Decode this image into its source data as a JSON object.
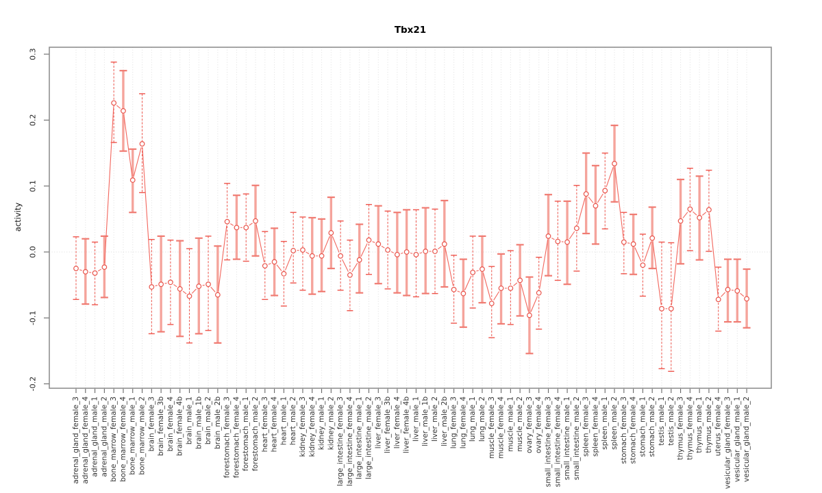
{
  "header": {
    "title": "Tbx21"
  },
  "chart_data": {
    "type": "line",
    "subtype": "points-with-error-bars",
    "title": "Tbx21",
    "xlabel": "",
    "ylabel": "activity",
    "ylim": [
      -0.21,
      0.31
    ],
    "yticks": [
      0.3,
      0.2,
      0.1,
      0.0,
      -0.1,
      -0.2
    ],
    "grid": "vertical dotted line per category; dotted horizontal line at y=0; no legend",
    "legend": "none",
    "marker": "open-circle",
    "line_style": "solid segments with gaps at markers",
    "colors": {
      "line": "#f2655c",
      "point": "#e9534a",
      "bar_thick": "#f5a49c",
      "bar_thick_tick": "#f07b72",
      "bar_thin": "#ee544b",
      "grid": "#dedede",
      "zero_line": "#d9d9d9",
      "box": "#8f8f8f",
      "tick": "#666666",
      "text": "#333333"
    },
    "categories": [
      "adrenal_gland_female_3",
      "adrenal_gland_female_4",
      "adrenal_gland_male_1",
      "adrenal_gland_male_2",
      "bone_marrow_female_3",
      "bone_marrow_female_4",
      "bone_marrow_male_1",
      "bone_marrow_male_2",
      "brain_female_3",
      "brain_female_3b",
      "brain_female_4",
      "brain_female_4b",
      "brain_male_1",
      "brain_male_1b",
      "brain_male_2",
      "brain_male_2b",
      "forestomach_female_3",
      "forestomach_female_4",
      "forestomach_male_1",
      "forestomach_male_2",
      "heart_female_3",
      "heart_female_4",
      "heart_male_1",
      "heart_male_2",
      "kidney_female_3",
      "kidney_female_4",
      "kidney_male_1",
      "kidney_male_2",
      "large_intestine_female_3",
      "large_intestine_female_4",
      "large_intestine_male_1",
      "large_intestine_male_2",
      "liver_female_3",
      "liver_female_3b",
      "liver_female_4",
      "liver_female_4b",
      "liver_male_1",
      "liver_male_1b",
      "liver_male_2",
      "liver_male_2b",
      "lung_female_3",
      "lung_female_4",
      "lung_male_1",
      "lung_male_2",
      "muscle_female_3",
      "muscle_female_4",
      "muscle_male_1",
      "muscle_male_2",
      "ovary_female_3",
      "ovary_female_4",
      "small_intestine_female_3",
      "small_intestine_female_4",
      "small_intestine_male_1",
      "small_intestine_male_2",
      "spleen_female_3",
      "spleen_female_4",
      "spleen_male_1",
      "spleen_male_2",
      "stomach_female_3",
      "stomach_female_4",
      "stomach_male_1",
      "stomach_male_2",
      "testis_male_1",
      "testis_male_2",
      "thymus_female_3",
      "thymus_female_4",
      "thymus_male_1",
      "thymus_male_2",
      "uterus_female_4",
      "vesicular_gland_female_3",
      "vesicular_gland_male_1",
      "vesicular_gland_male_2"
    ],
    "series": [
      {
        "name": "activity",
        "values": [
          -0.025,
          -0.03,
          -0.032,
          -0.023,
          0.226,
          0.214,
          0.109,
          0.164,
          -0.053,
          -0.049,
          -0.046,
          -0.056,
          -0.067,
          -0.052,
          -0.049,
          -0.065,
          0.046,
          0.037,
          0.037,
          0.047,
          -0.021,
          -0.015,
          -0.033,
          0.002,
          0.003,
          -0.006,
          -0.006,
          0.029,
          -0.006,
          -0.035,
          -0.012,
          0.018,
          0.012,
          0.003,
          -0.004,
          0.0,
          -0.004,
          0.001,
          0.001,
          0.012,
          -0.057,
          -0.063,
          -0.031,
          -0.026,
          -0.078,
          -0.055,
          -0.055,
          -0.043,
          -0.096,
          -0.062,
          0.024,
          0.016,
          0.015,
          0.036,
          0.088,
          0.07,
          0.093,
          0.134,
          0.015,
          0.012,
          -0.02,
          0.021,
          -0.086,
          -0.086,
          0.047,
          0.065,
          0.052,
          0.064,
          -0.072,
          -0.057,
          -0.059,
          -0.071
        ],
        "err_lo": [
          -0.072,
          -0.079,
          -0.08,
          -0.069,
          0.166,
          0.153,
          0.06,
          0.09,
          -0.124,
          -0.121,
          -0.11,
          -0.128,
          -0.138,
          -0.124,
          -0.119,
          -0.138,
          -0.012,
          -0.011,
          -0.014,
          -0.006,
          -0.072,
          -0.066,
          -0.082,
          -0.047,
          -0.058,
          -0.064,
          -0.06,
          -0.025,
          -0.058,
          -0.089,
          -0.062,
          -0.034,
          -0.048,
          -0.056,
          -0.062,
          -0.066,
          -0.068,
          -0.063,
          -0.063,
          -0.053,
          -0.108,
          -0.114,
          -0.085,
          -0.077,
          -0.13,
          -0.109,
          -0.11,
          -0.097,
          -0.154,
          -0.117,
          -0.036,
          -0.043,
          -0.049,
          -0.029,
          0.028,
          0.012,
          0.035,
          0.076,
          -0.033,
          -0.034,
          -0.067,
          -0.025,
          -0.177,
          -0.181,
          -0.018,
          0.002,
          -0.012,
          0.001,
          -0.12,
          -0.106,
          -0.106,
          -0.115
        ],
        "err_hi": [
          0.023,
          0.02,
          0.015,
          0.024,
          0.288,
          0.275,
          0.156,
          0.24,
          0.019,
          0.024,
          0.018,
          0.017,
          0.005,
          0.021,
          0.024,
          0.009,
          0.104,
          0.086,
          0.088,
          0.101,
          0.031,
          0.036,
          0.016,
          0.06,
          0.053,
          0.052,
          0.05,
          0.083,
          0.047,
          0.018,
          0.042,
          0.072,
          0.07,
          0.062,
          0.06,
          0.064,
          0.064,
          0.067,
          0.065,
          0.078,
          -0.005,
          -0.011,
          0.024,
          0.024,
          -0.022,
          -0.003,
          0.002,
          0.011,
          -0.038,
          -0.008,
          0.087,
          0.077,
          0.077,
          0.101,
          0.15,
          0.131,
          0.15,
          0.192,
          0.06,
          0.057,
          0.027,
          0.068,
          0.015,
          0.014,
          0.11,
          0.127,
          0.115,
          0.124,
          -0.023,
          -0.011,
          -0.011,
          -0.026
        ],
        "bar_style": [
          "thin",
          "thick",
          "thin",
          "thick",
          "thin",
          "thick",
          "thick",
          "thin",
          "thin",
          "thick",
          "thin",
          "thick",
          "thin",
          "thick",
          "thin",
          "thick",
          "thin",
          "thick",
          "thin",
          "thick",
          "thin",
          "thick",
          "thin",
          "thin",
          "thin",
          "thick",
          "thick",
          "thick",
          "thin",
          "thin",
          "thick",
          "thin",
          "thick",
          "thin",
          "thick",
          "thick",
          "thin",
          "thick",
          "thin",
          "thick",
          "thin",
          "thick",
          "thin",
          "thick",
          "thin",
          "thick",
          "thin",
          "thick",
          "thick",
          "thin",
          "thick",
          "thin",
          "thick",
          "thin",
          "thick",
          "thick",
          "thin",
          "thick",
          "thin",
          "thick",
          "thin",
          "thick",
          "thin",
          "thin",
          "thick",
          "thin",
          "thick",
          "thin",
          "thin",
          "thick",
          "thick",
          "thick"
        ]
      }
    ]
  }
}
